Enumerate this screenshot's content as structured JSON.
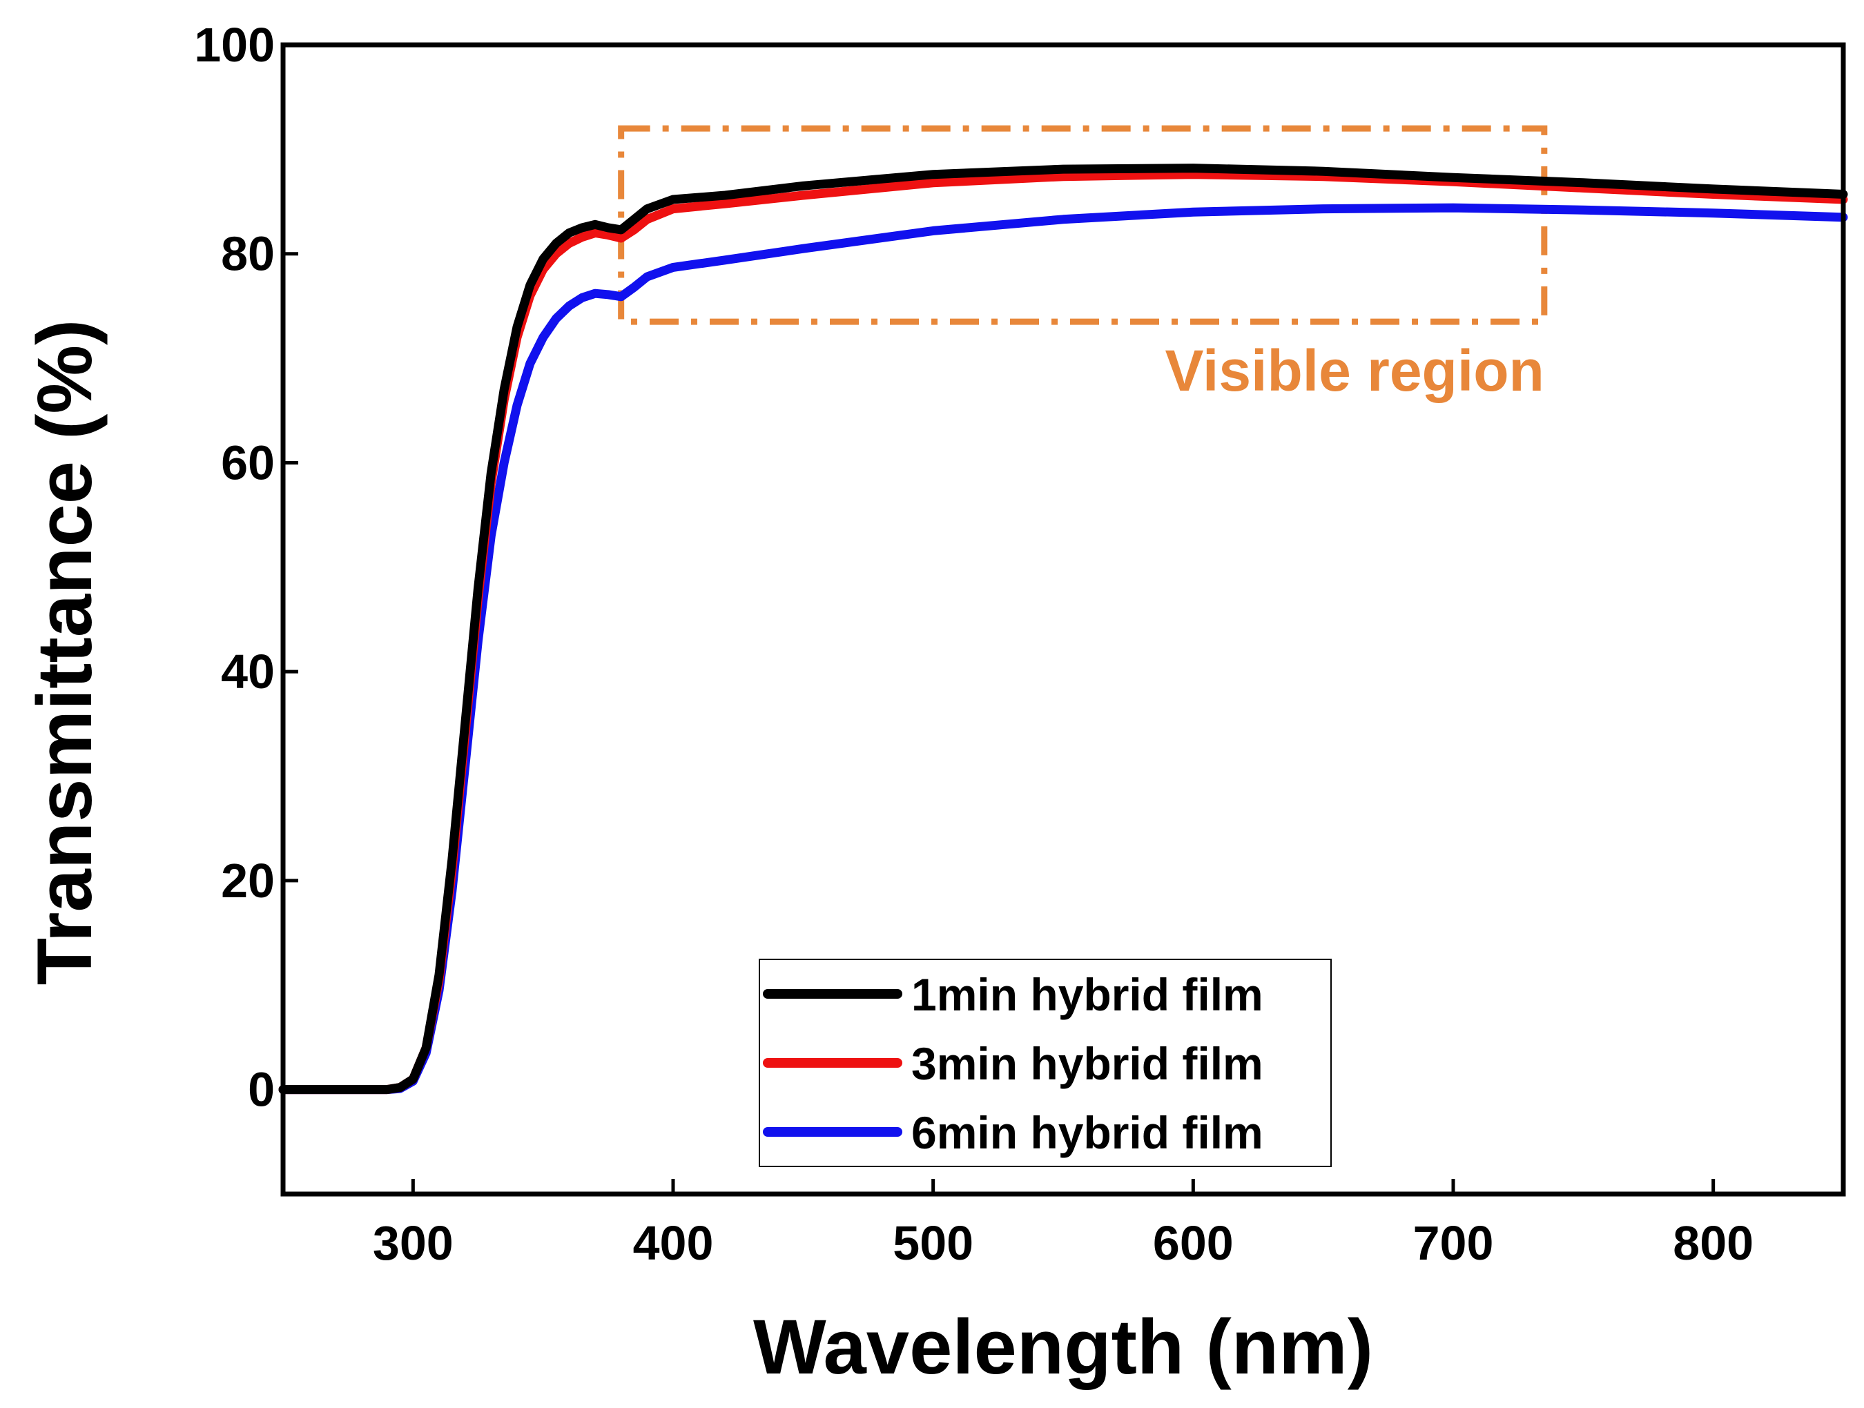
{
  "chart_data": {
    "type": "line",
    "title": "",
    "xlabel": "Wavelength (nm)",
    "ylabel": "Transmittance (%)",
    "xlim": [
      250,
      850
    ],
    "ylim": [
      -10,
      100
    ],
    "xticks": [
      300,
      400,
      500,
      600,
      700,
      800
    ],
    "yticks": [
      0,
      20,
      40,
      60,
      80,
      100
    ],
    "grid": false,
    "legend_position": "bottom-center",
    "series": [
      {
        "name": "1min hybrid film",
        "color": "#000000",
        "x": [
          250,
          290,
          295,
          300,
          305,
          310,
          315,
          320,
          325,
          330,
          335,
          340,
          345,
          350,
          355,
          360,
          365,
          370,
          375,
          380,
          385,
          390,
          400,
          420,
          450,
          500,
          550,
          600,
          650,
          700,
          750,
          800,
          850
        ],
        "y": [
          0,
          0,
          0.2,
          1,
          4,
          11,
          22,
          35,
          48,
          59,
          67,
          73,
          77,
          79.5,
          81,
          82,
          82.5,
          82.8,
          82.5,
          82.3,
          83.3,
          84.3,
          85.2,
          85.6,
          86.5,
          87.6,
          88.1,
          88.2,
          87.9,
          87.3,
          86.8,
          86.2,
          85.7
        ]
      },
      {
        "name": "3min hybrid film",
        "color": "#ee1111",
        "x": [
          250,
          290,
          295,
          300,
          305,
          310,
          315,
          320,
          325,
          330,
          335,
          340,
          345,
          350,
          355,
          360,
          365,
          370,
          375,
          380,
          385,
          390,
          400,
          420,
          450,
          500,
          550,
          600,
          650,
          700,
          750,
          800,
          850
        ],
        "y": [
          0,
          0,
          0.2,
          1,
          4,
          10.5,
          21,
          34,
          47,
          58,
          66,
          72,
          76,
          78.5,
          80,
          81,
          81.6,
          82,
          81.8,
          81.5,
          82.3,
          83.3,
          84.3,
          84.8,
          85.6,
          86.8,
          87.4,
          87.6,
          87.4,
          86.9,
          86.3,
          85.7,
          85.2
        ]
      },
      {
        "name": "6min hybrid film",
        "color": "#1111ee",
        "x": [
          250,
          290,
          295,
          300,
          305,
          310,
          315,
          320,
          325,
          330,
          335,
          340,
          345,
          350,
          355,
          360,
          365,
          370,
          375,
          380,
          385,
          390,
          400,
          420,
          450,
          500,
          550,
          600,
          650,
          700,
          750,
          800,
          850
        ],
        "y": [
          0,
          0,
          0.1,
          0.8,
          3.5,
          9.5,
          19,
          31,
          43,
          53,
          60,
          65.5,
          69.5,
          72,
          73.8,
          75,
          75.8,
          76.2,
          76.1,
          75.9,
          76.8,
          77.8,
          78.7,
          79.4,
          80.5,
          82.2,
          83.3,
          84,
          84.3,
          84.4,
          84.2,
          83.9,
          83.5
        ]
      }
    ],
    "annotations": [
      {
        "label": "Visible region",
        "color": "#e8873a",
        "x_range": [
          380,
          735
        ],
        "y_range": [
          73.5,
          92
        ]
      }
    ]
  }
}
